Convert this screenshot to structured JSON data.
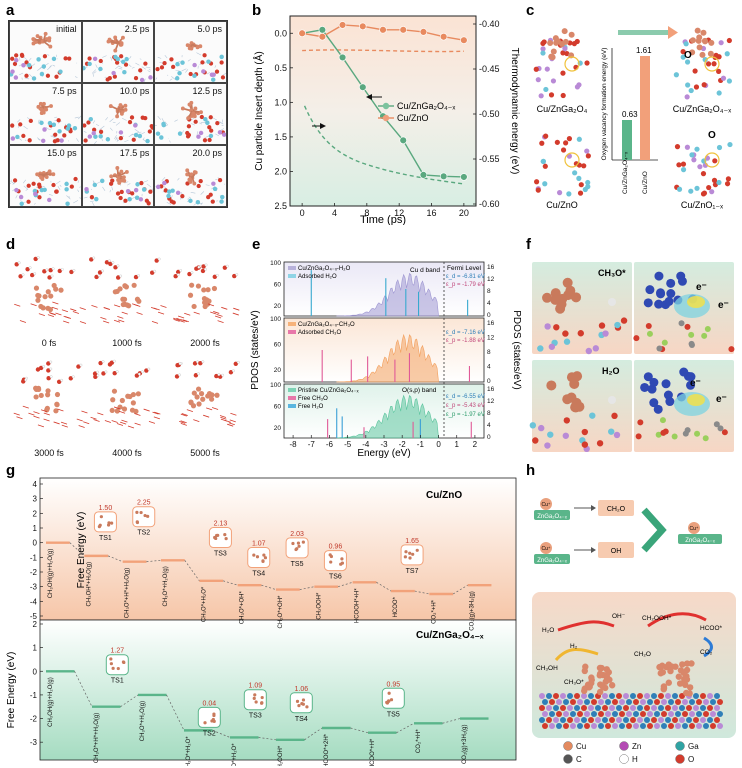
{
  "labels": {
    "a": "a",
    "b": "b",
    "c": "c",
    "d": "d",
    "e": "e",
    "f": "f",
    "g": "g",
    "h": "h"
  },
  "panel_a": {
    "times": [
      "initial",
      "2.5 ps",
      "5.0 ps",
      "7.5 ps",
      "10.0 ps",
      "12.5 ps",
      "15.0 ps",
      "17.5 ps",
      "20.0 ps"
    ]
  },
  "panel_b": {
    "xlabel": "Time (ps)",
    "ylabel_left": "Cu particle Insert depth (Å)",
    "ylabel_right": "Thermodynamic energy (eV)",
    "legend": [
      "Cu/ZnGa₂O₄₋ₓ",
      "Cu/ZnO"
    ],
    "x_ticks": [
      "0",
      "2",
      "4",
      "6",
      "8",
      "10",
      "12",
      "14",
      "16",
      "18",
      "20"
    ],
    "yl_ticks": [
      "0.0",
      "0.5",
      "1.0",
      "1.5",
      "2.0",
      "2.5"
    ],
    "yr_ticks": [
      "-0.40",
      "-0.45",
      "-0.50",
      "-0.55",
      "-0.60"
    ]
  },
  "chart_data": {
    "type": "line",
    "x": [
      0,
      2.5,
      5.0,
      7.5,
      10.0,
      12.5,
      15.0,
      17.5,
      20.0
    ],
    "series": [
      {
        "name": "Cu/ZnGa₂O₄₋ₓ",
        "values": [
          0.0,
          -0.05,
          0.35,
          0.78,
          1.2,
          1.55,
          2.05,
          2.07,
          2.08
        ],
        "color": "#5aa87f"
      },
      {
        "name": "Cu/ZnO",
        "values": [
          0.0,
          0.05,
          -0.12,
          -0.1,
          -0.05,
          -0.05,
          -0.02,
          0.05,
          0.1
        ],
        "color": "#e88a5f"
      }
    ],
    "xlim": [
      -1.5,
      21.5
    ],
    "ylim": [
      2.5,
      -0.25
    ],
    "xlabel": "Time (ps)",
    "ylabel": "Cu particle Insert depth (Å)"
  },
  "panel_c": {
    "labels": [
      "Cu/ZnGa₂O₄",
      "Cu/ZnGa₂O₄₋ₓ",
      "Cu/ZnO",
      "Cu/ZnO₁₋ₓ"
    ],
    "bar_title": "Oxygen vacancy formation energy (eV)",
    "bars": [
      {
        "name": "Cu/ZnGa₂O₄₋ₓ",
        "value": 0.63,
        "color": "#5ab58a"
      },
      {
        "name": "Cu/ZnO",
        "value": 1.61,
        "color": "#f2a07a"
      }
    ],
    "vac": "O"
  },
  "panel_d": {
    "times": [
      "0 fs",
      "1000 fs",
      "2000 fs",
      "3000 fs",
      "4000 fs",
      "5000 fs"
    ]
  },
  "panel_e": {
    "xlabel": "Energy (eV)",
    "ylabel_left": "PDOS (states/eV)",
    "ylabel_right": "PDOS (states/eV)",
    "x_ticks": [
      "-8",
      "-7",
      "-6",
      "-5",
      "-4",
      "-3",
      "-2",
      "-1",
      "0",
      "1",
      "2"
    ],
    "yl_ticks": [
      "100",
      "80",
      "60",
      "40",
      "20",
      "0"
    ],
    "yr_ticks": [
      "16",
      "12",
      "8",
      "4",
      "0"
    ],
    "fermi": "Fermi Level",
    "sub1": {
      "leg": [
        "Cu/ZnGa₂O₄₋ₓ-H₂O",
        "Adsorbed H₂O"
      ],
      "band": "Cu d band",
      "ed": "ε_d = -6.81 eV",
      "ep": "ε_p = -1.79 eV"
    },
    "sub2": {
      "leg": [
        "Cu/ZnGa₂O₄₋ₓ-CH₃O",
        "Adsorbed CH₃O"
      ],
      "ed": "ε_d = -7.16 eV",
      "ep": "ε_p = -1.88 eV"
    },
    "sub3": {
      "leg": [
        "Pristine Cu/ZnGa₂O₄₋ₓ",
        "Free CH₃O",
        "Free H₂O"
      ],
      "band": "O(s,p) band",
      "e1": "ε_d = -6.55 eV",
      "e2": "ε_p = -5.43 eV",
      "e3": "ε_p = -1.97 eV"
    }
  },
  "panel_f": {
    "top": "CH₃O*",
    "bottom": "H₂O",
    "e": "e⁻"
  },
  "panel_g": {
    "ylabel": "Free Energy (eV)",
    "top_title": "Cu/ZnO",
    "bottom_title": "Cu/ZnGa₂O₄₋ₓ",
    "top_ticks": [
      "4",
      "3",
      "2",
      "1",
      "0",
      "-1",
      "-2",
      "-3",
      "-4",
      "-5"
    ],
    "bottom_ticks": [
      "2",
      "1",
      "0",
      "-1",
      "-2",
      "-3"
    ],
    "top_states": [
      "CH₃OH(g)+H₂O(g)",
      "CH₃OH*+H₂O(g)",
      "CH₃O*+H*+H₂O(g)",
      "CH₃O*+H₂O(g)",
      "CH₃O*+H₂O*",
      "CH₃O*+OH*",
      "CH₂O*+OH*",
      "CH₂OOH*",
      "HCOOH*+H*",
      "HCOO*",
      "CO₂*+H*",
      "CO₂(g)+3H₂(g)"
    ],
    "bottom_states": [
      "CH₃OH(g)+H₂O(g)",
      "CH₃O*+H*+H₂O(g)",
      "CH₃O*+H₂O(g)",
      "CH₃O*+H₂O*",
      "CH₂O*+H₂O*",
      "CH₂OOH*",
      "HCOO*+2H*",
      "HCOO*+H*",
      "CO₂*+H*",
      "CO₂(g)+3H₂(g)"
    ],
    "top_ts": [
      {
        "name": "TS1",
        "val": "1.50"
      },
      {
        "name": "TS2",
        "val": "2.25"
      },
      {
        "name": "TS3",
        "val": "2.13"
      },
      {
        "name": "TS4",
        "val": "1.07"
      },
      {
        "name": "TS5",
        "val": "2.03"
      },
      {
        "name": "TS6",
        "val": "0.96"
      },
      {
        "name": "TS7",
        "val": "1.65"
      }
    ],
    "bottom_ts": [
      {
        "name": "TS1",
        "val": "1.27"
      },
      {
        "name": "TS2",
        "val": "0.04"
      },
      {
        "name": "TS3",
        "val": "1.09"
      },
      {
        "name": "TS4",
        "val": "1.06"
      },
      {
        "name": "TS5",
        "val": "0.95"
      }
    ],
    "h2": "1/2H₂",
    "h2b": "H₂",
    "co2": "CO₂",
    "zero": "0",
    "top_color": "#f2a27a",
    "bottom_color": "#5ab58a"
  },
  "panel_h": {
    "sup1": "ZnGa₂O₄₋ₓ",
    "sup2": "ZnGa₂O₄₋ₓ",
    "cu": "Cu⁺",
    "ch2o": "CH₂O",
    "oh": "OH",
    "legend": [
      "Cu",
      "Zn",
      "Ga",
      "C",
      "H",
      "O"
    ],
    "species": [
      "H₂O",
      "H₂",
      "OH⁻",
      "CH₂OOH*",
      "HCOO*",
      "CO₂",
      "CH₃OH",
      "CH₃O*",
      "H₂",
      "CH₂O"
    ]
  }
}
